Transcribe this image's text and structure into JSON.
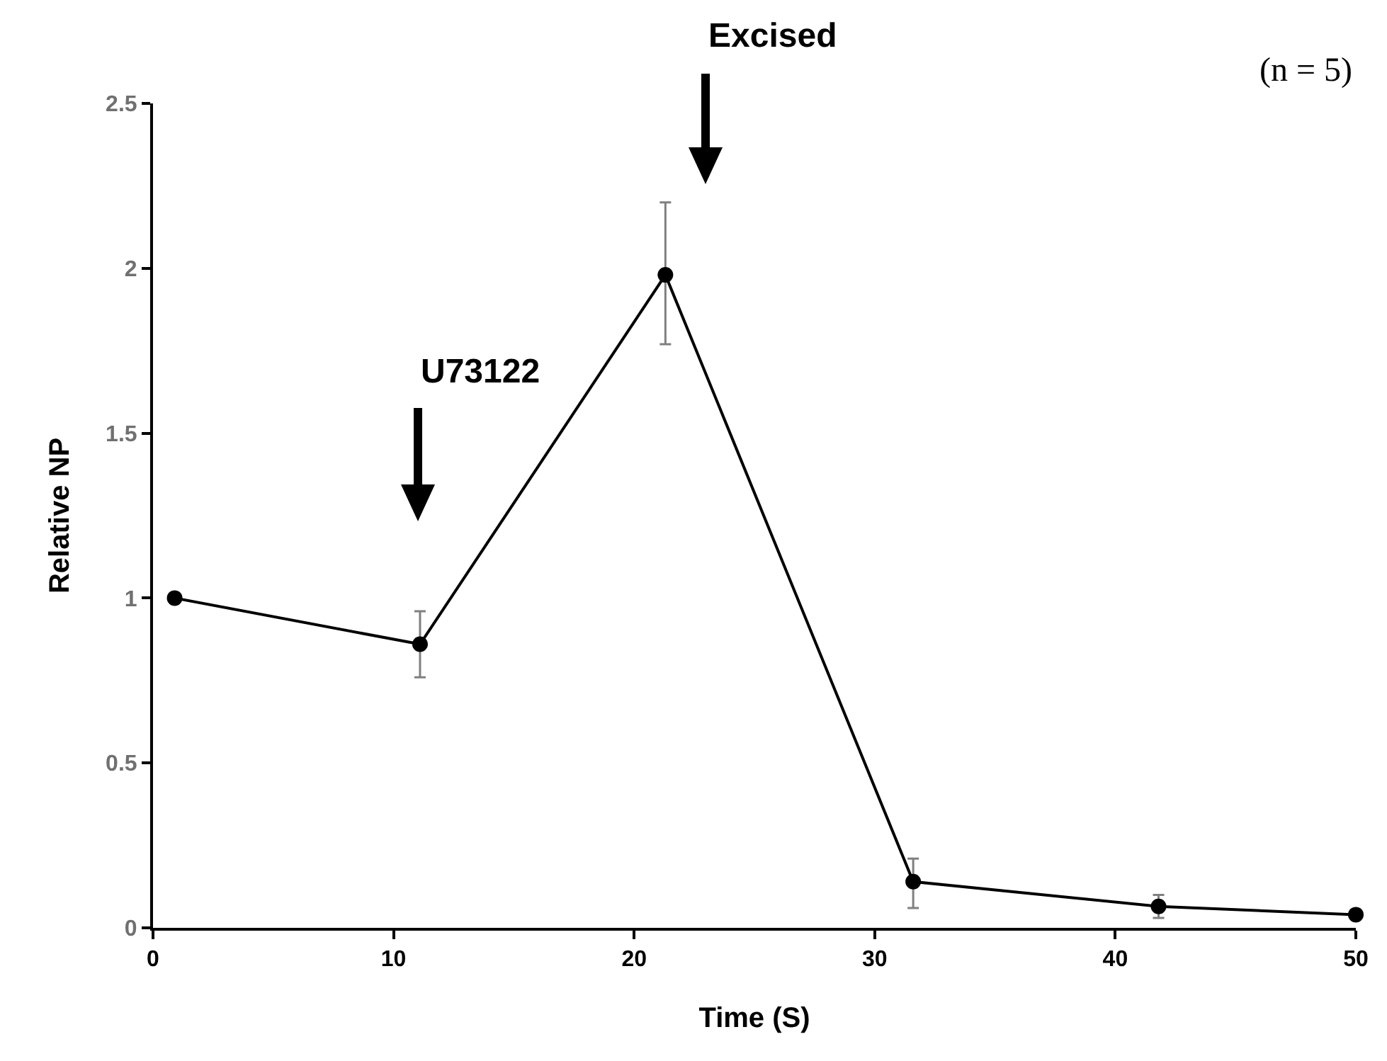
{
  "chart_data": {
    "type": "line",
    "xlabel": "Time (S)",
    "ylabel": "Relative NP",
    "x": [
      0.9,
      11.1,
      21.3,
      31.6,
      41.8,
      50
    ],
    "series": [
      {
        "color": "#000000",
        "values": [
          1,
          0.86,
          1.98,
          0.14,
          0.065,
          0.04
        ],
        "errors": [
          null,
          0.1,
          [
            1.77,
            2.2
          ],
          [
            0.06,
            0.21
          ],
          [
            0.03,
            0.1
          ],
          null
        ]
      }
    ],
    "xlim": [
      0,
      50
    ],
    "xticks": [
      0,
      10,
      20,
      30,
      40,
      50
    ],
    "ylim": [
      0,
      2.5
    ],
    "yticks": [
      0,
      0.5,
      1,
      1.5,
      2,
      2.5
    ],
    "annotations": [
      "U73122",
      "Excised",
      "(n = 5)"
    ],
    "grid": false,
    "marker": "circle",
    "line_style": "solid"
  }
}
